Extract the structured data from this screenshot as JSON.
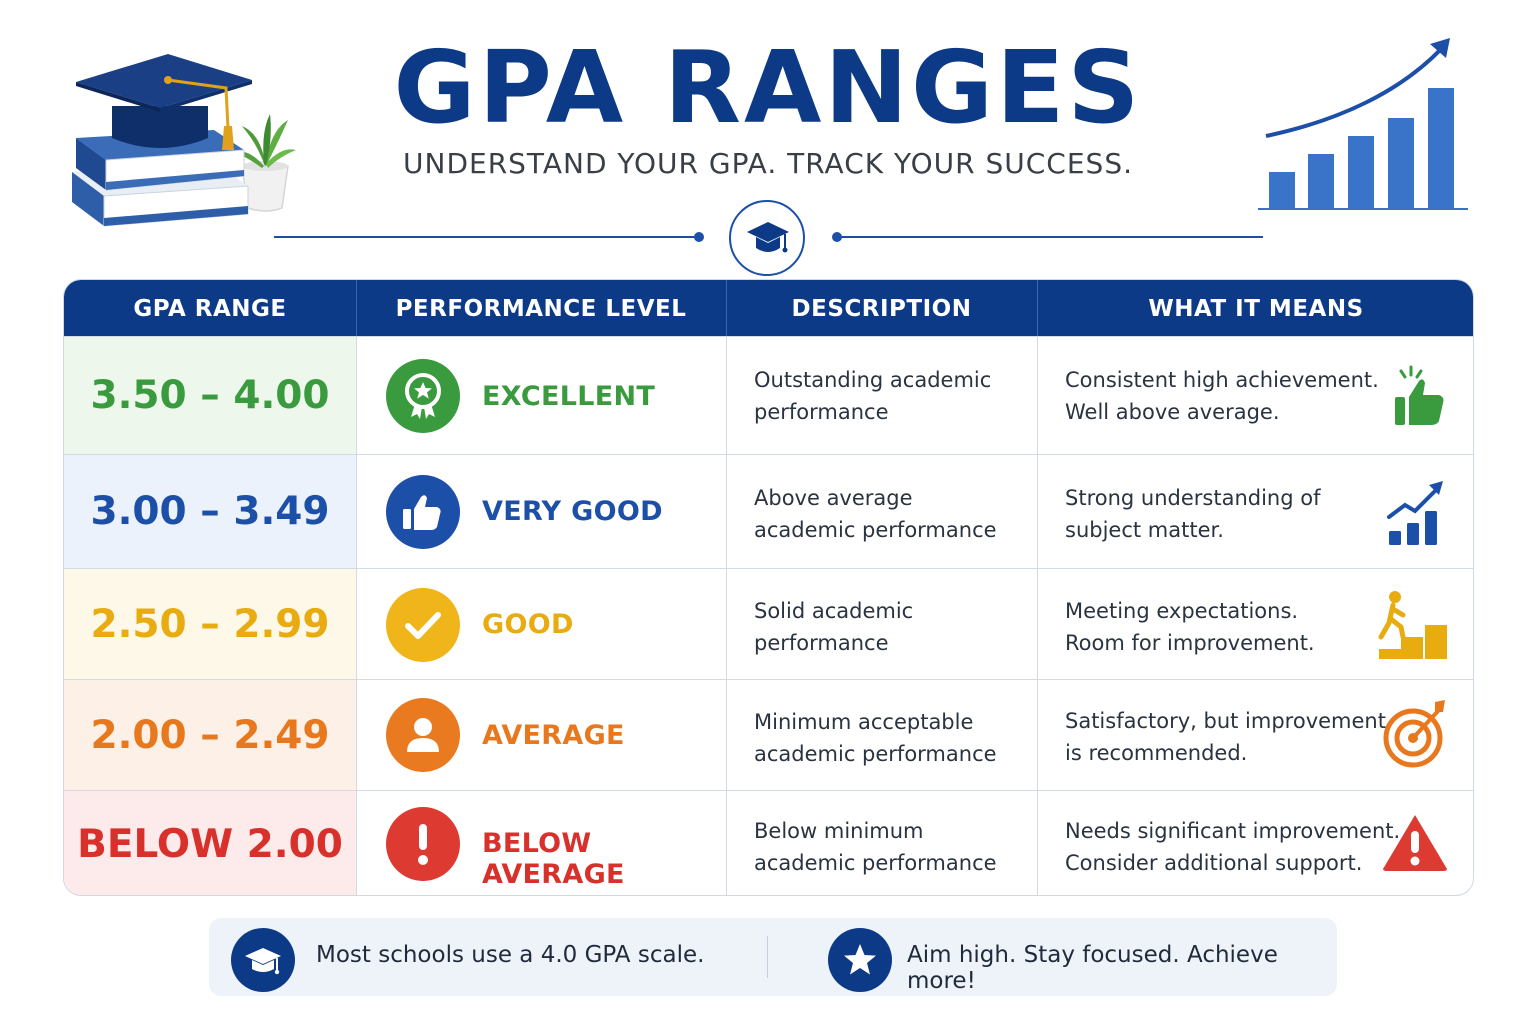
{
  "header": {
    "title": "GPA RANGES",
    "subtitle": "UNDERSTAND YOUR GPA. TRACK YOUR SUCCESS."
  },
  "table": {
    "columns": [
      "GPA RANGE",
      "PERFORMANCE LEVEL",
      "DESCRIPTION",
      "WHAT IT MEANS"
    ],
    "rows": [
      {
        "range": "3.50 – 4.00",
        "level": "EXCELLENT",
        "description": [
          "Outstanding academic",
          "performance"
        ],
        "meaning": [
          "Consistent high achievement.",
          "Well above average."
        ],
        "color": "#3a9a3e",
        "bg": "#eef7ec",
        "level_icon": "award-icon",
        "meaning_icon": "thumbs-up-icon"
      },
      {
        "range": "3.00 – 3.49",
        "level": "VERY GOOD",
        "description": [
          "Above average",
          "academic performance"
        ],
        "meaning": [
          "Strong understanding of",
          "subject matter."
        ],
        "color": "#1c4fa8",
        "bg": "#ebf2fc",
        "level_icon": "thumbs-up-icon",
        "meaning_icon": "growth-chart-icon"
      },
      {
        "range": "2.50 – 2.99",
        "level": "GOOD",
        "description": [
          "Solid academic",
          "performance"
        ],
        "meaning": [
          "Meeting expectations.",
          "Room for improvement."
        ],
        "color": "#e8ac10",
        "bg": "#fdf8e7",
        "level_icon": "checkmark-icon",
        "meaning_icon": "climbing-steps-icon"
      },
      {
        "range": "2.00 – 2.49",
        "level": "AVERAGE",
        "description": [
          "Minimum acceptable",
          "academic performance"
        ],
        "meaning": [
          "Satisfactory, but improvement",
          "is recommended."
        ],
        "color": "#e8781e",
        "bg": "#fdf0e6",
        "level_icon": "person-icon",
        "meaning_icon": "target-icon"
      },
      {
        "range": "BELOW 2.00",
        "level": "BELOW AVERAGE",
        "description": [
          "Below minimum",
          "academic performance"
        ],
        "meaning": [
          "Needs significant improvement.",
          "Consider additional support."
        ],
        "color": "#d8312c",
        "bg": "#fcebea",
        "level_icon": "exclamation-icon",
        "meaning_icon": "warning-triangle-icon"
      }
    ]
  },
  "footer": {
    "left_text": "Most schools use a 4.0 GPA scale.",
    "right_text": "Aim high. Stay focused. Achieve more!",
    "left_icon": "graduation-cap-icon",
    "right_icon": "star-icon"
  },
  "decor": {
    "left_icon": "graduation-books-plant-icon",
    "right_icon": "rising-bar-chart-icon",
    "divider_icon": "graduation-cap-icon"
  }
}
